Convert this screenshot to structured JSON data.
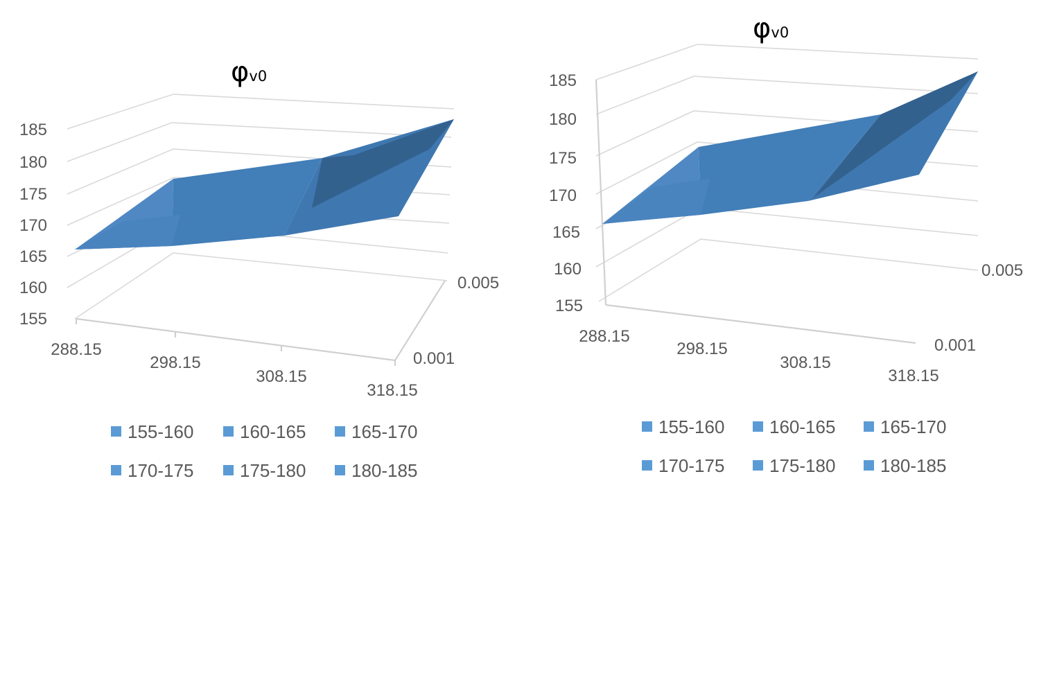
{
  "chart_data": [
    {
      "type": "surface",
      "title": "φ",
      "title_subscript": "v0",
      "x_categories": [
        "288.15",
        "298.15",
        "308.15",
        "318.15"
      ],
      "z_categories": [
        "0.001",
        "0.005"
      ],
      "z_tick_labels": [
        "0.005",
        "0.001"
      ],
      "y_ticks": [
        "185",
        "180",
        "175",
        "170",
        "165",
        "160",
        "155"
      ],
      "ylim": [
        155,
        185
      ],
      "surface_values": {
        "0.001": [
          165,
          170,
          175,
          181
        ],
        "0.005": [
          165,
          173,
          177,
          185
        ]
      },
      "legend": [
        "155-160",
        "160-165",
        "165-170",
        "170-175",
        "175-180",
        "180-185"
      ],
      "colors": {
        "band_light": "#4f88c3",
        "band_mid": "#427eb8",
        "band_dark": "#33618e",
        "legend_swatch": "#5b9bd5"
      }
    },
    {
      "type": "surface",
      "title": "φ",
      "title_subscript": "v0",
      "x_categories": [
        "288.15",
        "298.15",
        "308.15",
        "318.15"
      ],
      "z_categories": [
        "0.001",
        "0.005"
      ],
      "z_tick_labels": [
        "0.005",
        "0.001"
      ],
      "y_ticks": [
        "185",
        "180",
        "175",
        "170",
        "165",
        "160",
        "155"
      ],
      "ylim": [
        155,
        185
      ],
      "surface_values": {
        "0.001": [
          165,
          172,
          176,
          181
        ],
        "0.005": [
          165,
          174,
          178,
          185
        ]
      },
      "legend": [
        "155-160",
        "160-165",
        "165-170",
        "170-175",
        "175-180",
        "180-185"
      ],
      "colors": {
        "band_light": "#4f88c3",
        "band_mid": "#427eb8",
        "band_dark": "#33618e",
        "legend_swatch": "#5b9bd5"
      }
    }
  ]
}
